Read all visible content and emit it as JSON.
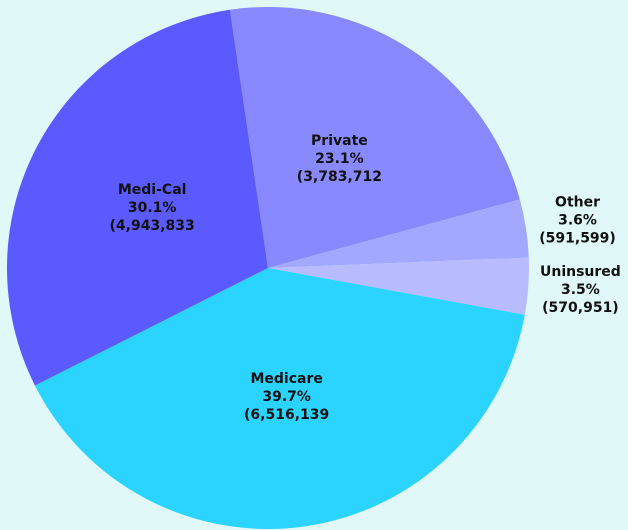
{
  "chart_data": {
    "type": "pie",
    "labels": [
      "Private",
      "Other",
      "Uninsured",
      "Medicare",
      "Medi-Cal"
    ],
    "values": [
      23.1,
      3.6,
      3.5,
      39.7,
      30.1
    ],
    "value_labels": [
      "23.1%",
      "3.6%",
      "3.5%",
      "39.7%",
      "30.1%"
    ],
    "counts": [
      3783712,
      591599,
      570951,
      6516139,
      4943833
    ],
    "count_labels": [
      "(3,783,712",
      "(591,599)",
      "(570,951)",
      "(6,516,139",
      "(4,943,833"
    ],
    "colors": [
      "#8888ff",
      "#a2a8ff",
      "#b8bcff",
      "#2ad4ff",
      "#5a5aff"
    ]
  }
}
